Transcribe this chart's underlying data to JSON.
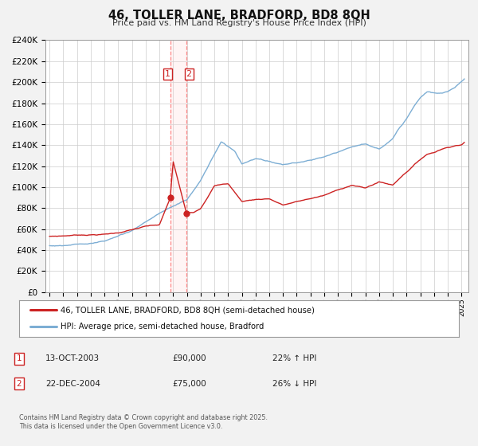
{
  "title": "46, TOLLER LANE, BRADFORD, BD8 8QH",
  "subtitle": "Price paid vs. HM Land Registry's House Price Index (HPI)",
  "legend_line1": "46, TOLLER LANE, BRADFORD, BD8 8QH (semi-detached house)",
  "legend_line2": "HPI: Average price, semi-detached house, Bradford",
  "transaction1_date": "13-OCT-2003",
  "transaction1_price": "£90,000",
  "transaction1_hpi": "22% ↑ HPI",
  "transaction1_year": 2003.79,
  "transaction1_value": 90000,
  "transaction2_date": "22-DEC-2004",
  "transaction2_price": "£75,000",
  "transaction2_hpi": "26% ↓ HPI",
  "transaction2_year": 2004.97,
  "transaction2_value": 75000,
  "hpi_color": "#7daed4",
  "price_color": "#cc2222",
  "marker_color": "#cc2222",
  "background_color": "#f2f2f2",
  "plot_bg_color": "#ffffff",
  "ylim": [
    0,
    240000
  ],
  "footer": "Contains HM Land Registry data © Crown copyright and database right 2025.\nThis data is licensed under the Open Government Licence v3.0."
}
